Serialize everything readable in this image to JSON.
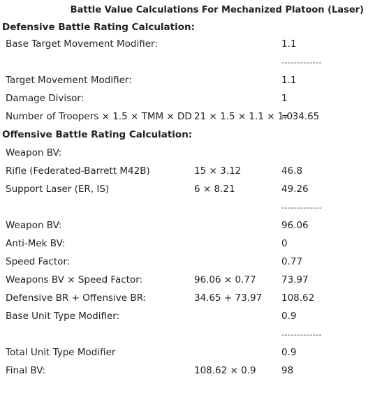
{
  "title": "Battle Value Calculations For Mechanized Platoon (Laser)",
  "rows": [
    {
      "type": "header",
      "label": "Defensive Battle Rating Calculation:"
    },
    {
      "type": "row",
      "label": "Base Target Movement Modifier:",
      "calc": "",
      "value": "1.1"
    },
    {
      "type": "sep",
      "value": "-------------"
    },
    {
      "type": "row",
      "label": "Target Movement Modifier:",
      "calc": "",
      "value": "1.1"
    },
    {
      "type": "row",
      "label": "Damage Divisor:",
      "calc": "",
      "value": "1"
    },
    {
      "type": "row",
      "label": "Number of Troopers × 1.5 × TMM × DD",
      "calc": "21 × 1.5 × 1.1 × 1.0",
      "value": "= 34.65"
    },
    {
      "type": "header",
      "label": "Offensive Battle Rating Calculation:"
    },
    {
      "type": "row",
      "label": "Weapon BV:",
      "calc": "",
      "value": ""
    },
    {
      "type": "row",
      "label": "Rifle (Federated-Barrett M42B)",
      "calc": "15 × 3.12",
      "value": "46.8"
    },
    {
      "type": "row",
      "label": "Support Laser (ER, IS)",
      "calc": "6 × 8.21",
      "value": "49.26"
    },
    {
      "type": "sep",
      "value": "-------------"
    },
    {
      "type": "row",
      "label": "Weapon BV:",
      "calc": "",
      "value": "96.06"
    },
    {
      "type": "row",
      "label": "Anti-Mek BV:",
      "calc": "",
      "value": "0"
    },
    {
      "type": "row",
      "label": "Speed Factor:",
      "calc": "",
      "value": "0.77"
    },
    {
      "type": "row",
      "label": "Weapons BV × Speed Factor:",
      "calc": "96.06 × 0.77",
      "value": "73.97"
    },
    {
      "type": "row",
      "label": "Defensive BR + Offensive BR:",
      "calc": "34.65 + 73.97",
      "value": "108.62"
    },
    {
      "type": "row",
      "label": "Base Unit Type Modifier:",
      "calc": "",
      "value": "0.9"
    },
    {
      "type": "sep",
      "value": "-------------"
    },
    {
      "type": "row",
      "label": "Total Unit Type Modifier",
      "calc": "",
      "value": "0.9"
    },
    {
      "type": "row",
      "label": "Final BV:",
      "calc": "108.62 × 0.9",
      "value": "98"
    }
  ]
}
